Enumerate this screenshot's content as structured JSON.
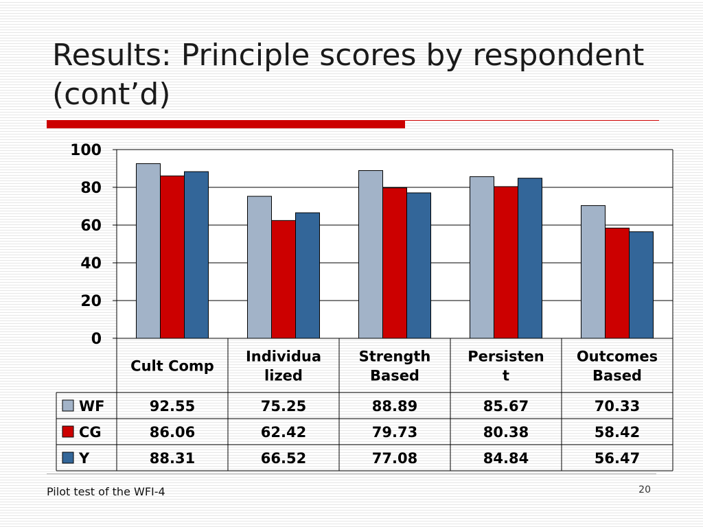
{
  "slide": {
    "title": "Results: Principle scores by respondent (cont’d)",
    "footer": "Pilot test of the WFI-4",
    "page_number": "20"
  },
  "chart_data": {
    "type": "bar",
    "ylim": [
      0,
      100
    ],
    "yticks": [
      0,
      20,
      40,
      60,
      80,
      100
    ],
    "grid": true,
    "categories": [
      [
        "Cult Comp"
      ],
      [
        "Individua",
        "lized"
      ],
      [
        "Strength",
        "Based"
      ],
      [
        "Persisten",
        "t"
      ],
      [
        "Outcomes",
        "Based"
      ]
    ],
    "series": [
      {
        "name": "WF",
        "color": "#a2b3c8",
        "values": [
          92.55,
          75.25,
          88.89,
          85.67,
          70.33
        ]
      },
      {
        "name": "CG",
        "color": "#cc0000",
        "values": [
          86.06,
          62.42,
          79.73,
          80.38,
          58.42
        ]
      },
      {
        "name": "Y",
        "color": "#336699",
        "values": [
          88.31,
          66.52,
          77.08,
          84.84,
          56.47
        ]
      }
    ],
    "data_table": true
  }
}
